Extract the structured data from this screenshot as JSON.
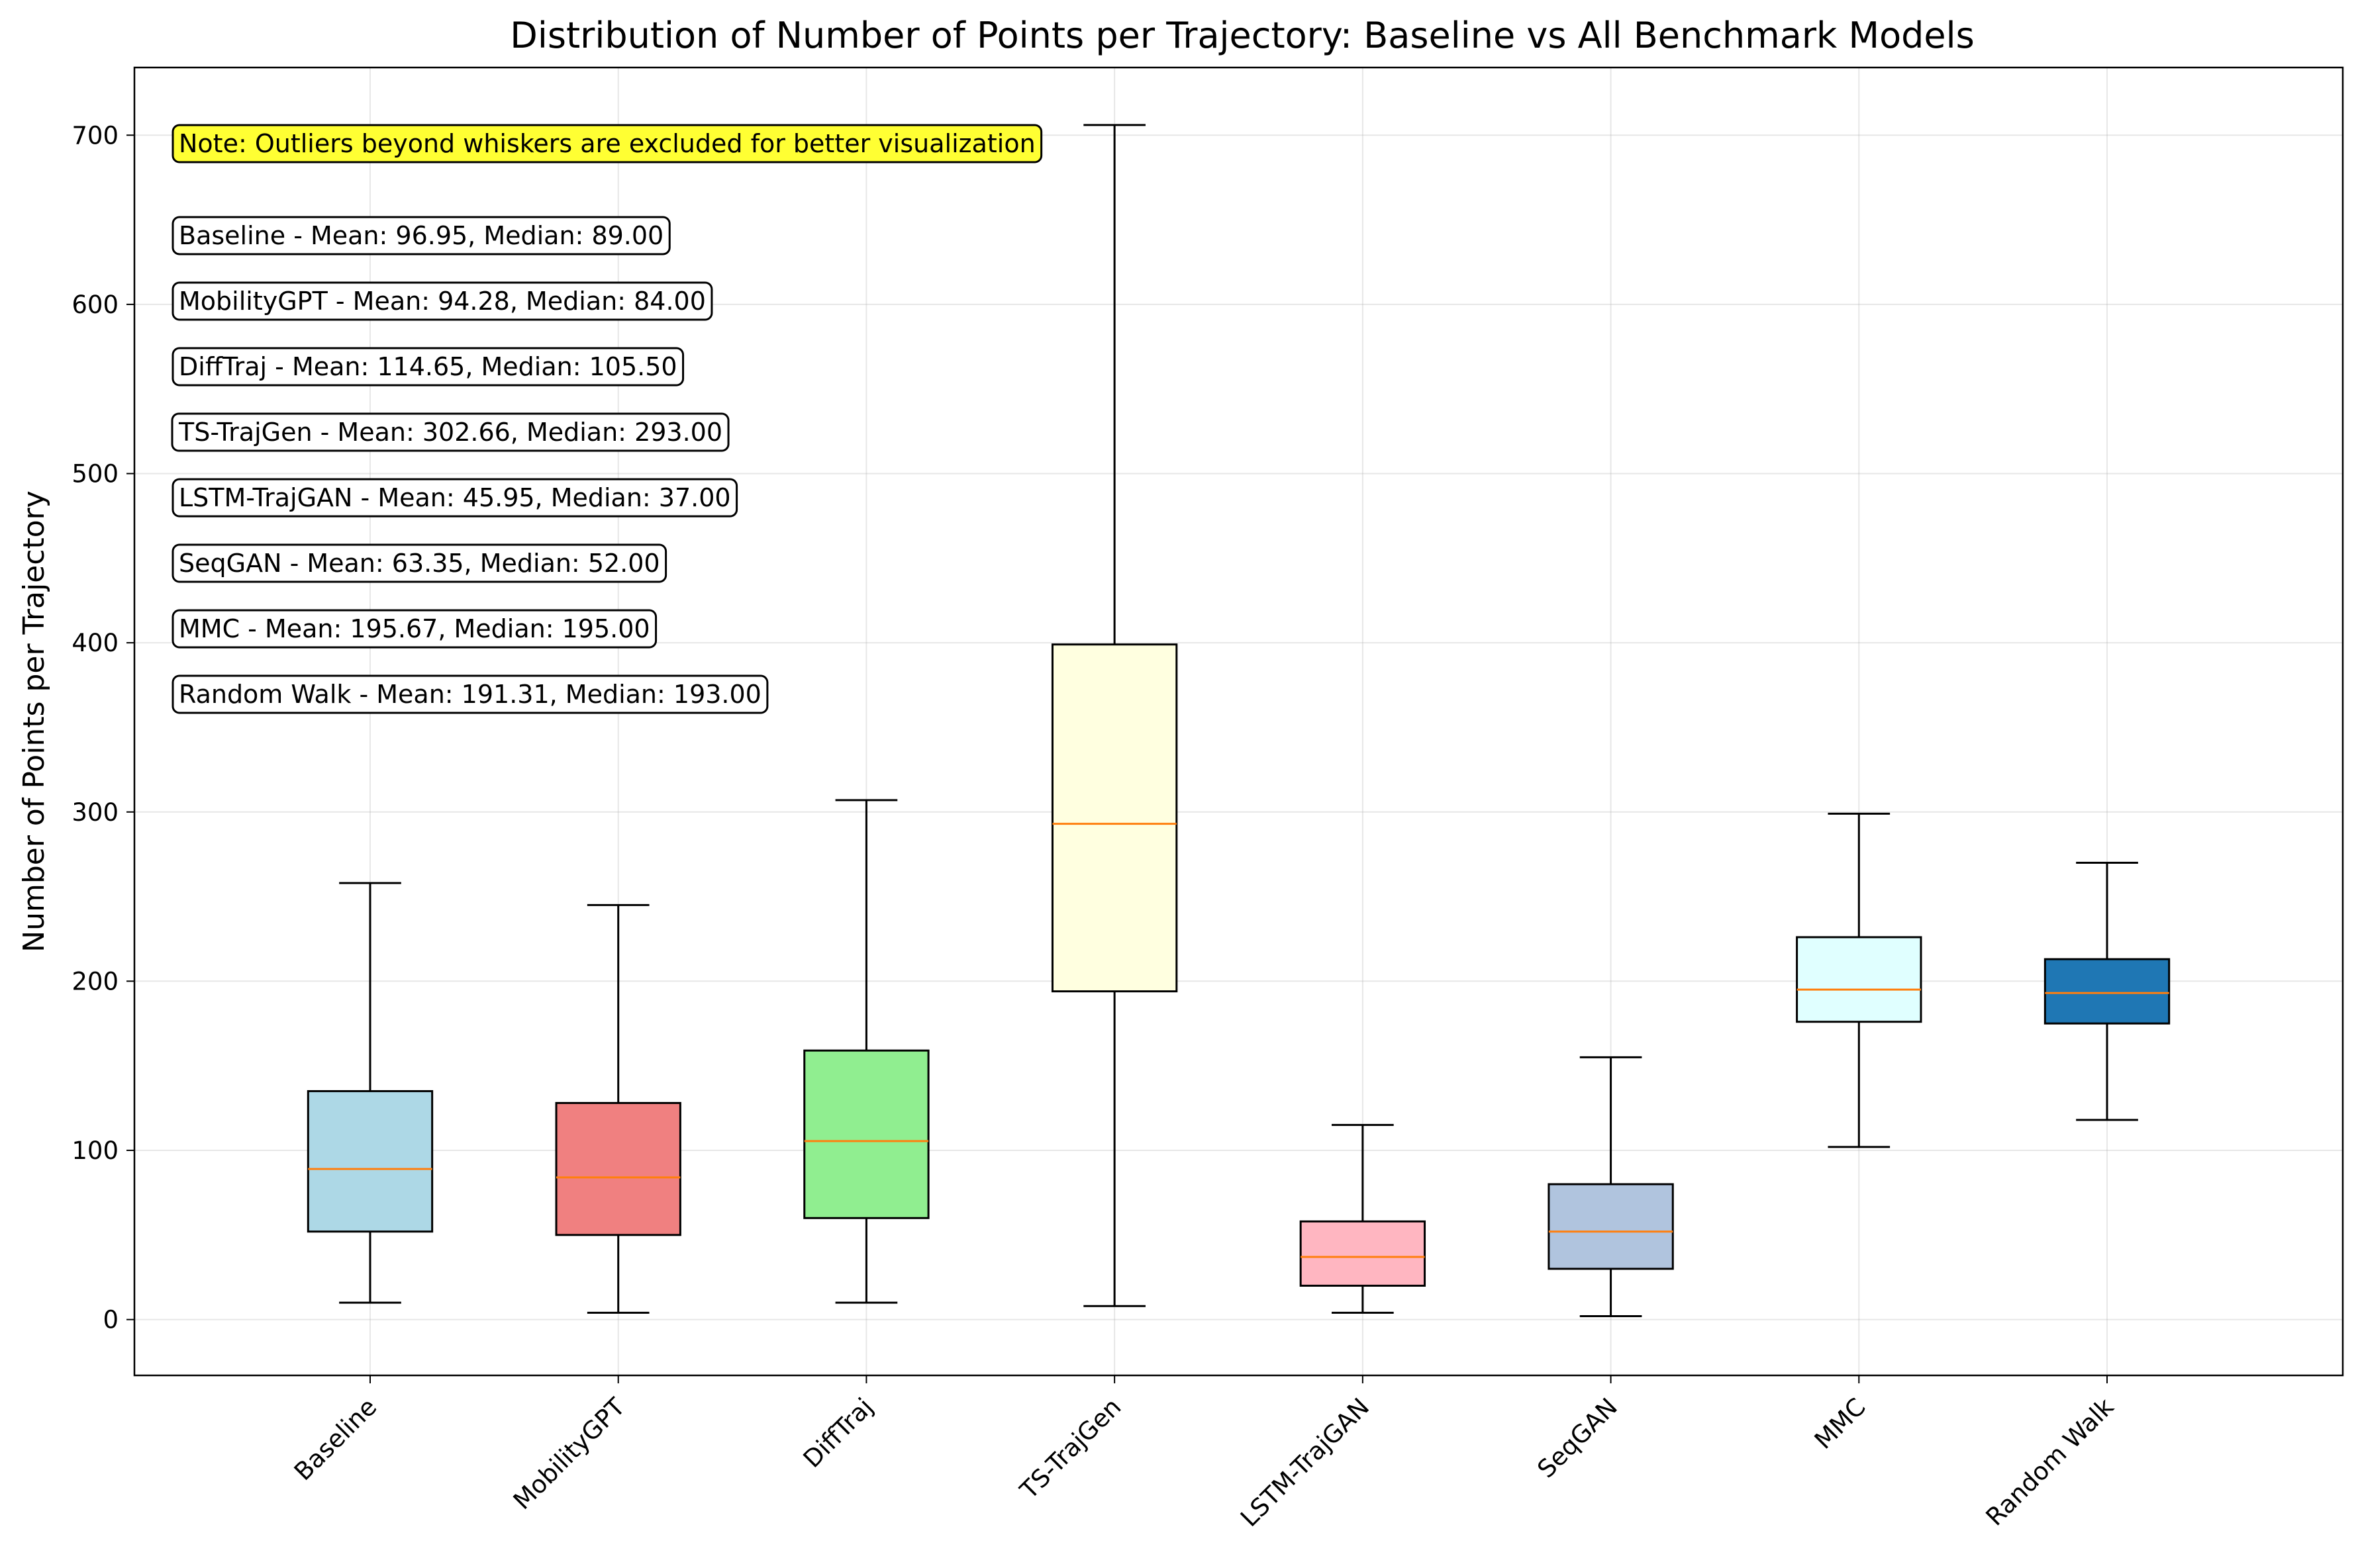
{
  "chart_data": {
    "type": "box",
    "title": "Distribution of Number of Points per Trajectory: Baseline vs All Benchmark Models",
    "xlabel": "",
    "ylabel": "Number of Points per Trajectory",
    "ylim": [
      -33,
      740
    ],
    "yticks": [
      0,
      100,
      200,
      300,
      400,
      500,
      600,
      700
    ],
    "grid": true,
    "note": "Note: Outliers beyond whiskers are excluded for better visualization",
    "median_color": "#ff7f0e",
    "series": [
      {
        "name": "Baseline",
        "whisker_low": 10,
        "q1": 52,
        "median": 89,
        "q3": 135,
        "whisker_high": 258,
        "mean": 96.95,
        "color": "#add8e6",
        "stats_label": "Baseline - Mean: 96.95, Median: 89.00"
      },
      {
        "name": "MobilityGPT",
        "whisker_low": 4,
        "q1": 50,
        "median": 84,
        "q3": 128,
        "whisker_high": 245,
        "mean": 94.28,
        "color": "#f08080",
        "stats_label": "MobilityGPT - Mean: 94.28, Median: 84.00"
      },
      {
        "name": "DiffTraj",
        "whisker_low": 10,
        "q1": 60,
        "median": 105.5,
        "q3": 159,
        "whisker_high": 307,
        "mean": 114.65,
        "color": "#90ee90",
        "stats_label": "DiffTraj - Mean: 114.65, Median: 105.50"
      },
      {
        "name": "TS-TrajGen",
        "whisker_low": 8,
        "q1": 194,
        "median": 293,
        "q3": 399,
        "whisker_high": 706,
        "mean": 302.66,
        "color": "#ffffe0",
        "stats_label": "TS-TrajGen - Mean: 302.66, Median: 293.00"
      },
      {
        "name": "LSTM-TrajGAN",
        "whisker_low": 4,
        "q1": 20,
        "median": 37,
        "q3": 58,
        "whisker_high": 115,
        "mean": 45.95,
        "color": "#ffb6c1",
        "stats_label": "LSTM-TrajGAN - Mean: 45.95, Median: 37.00"
      },
      {
        "name": "SeqGAN",
        "whisker_low": 2,
        "q1": 30,
        "median": 52,
        "q3": 80,
        "whisker_high": 155,
        "mean": 63.35,
        "color": "#b0c4de",
        "stats_label": "SeqGAN - Mean: 63.35, Median: 52.00"
      },
      {
        "name": "MMC",
        "whisker_low": 102,
        "q1": 176,
        "median": 195,
        "q3": 226,
        "whisker_high": 299,
        "mean": 195.67,
        "color": "#e0ffff",
        "stats_label": "MMC - Mean: 195.67, Median: 195.00"
      },
      {
        "name": "Random Walk",
        "whisker_low": 118,
        "q1": 175,
        "median": 193,
        "q3": 213,
        "whisker_high": 270,
        "mean": 191.31,
        "color": "#1f77b4",
        "stats_label": "Random Walk - Mean: 191.31, Median: 193.00"
      }
    ]
  }
}
